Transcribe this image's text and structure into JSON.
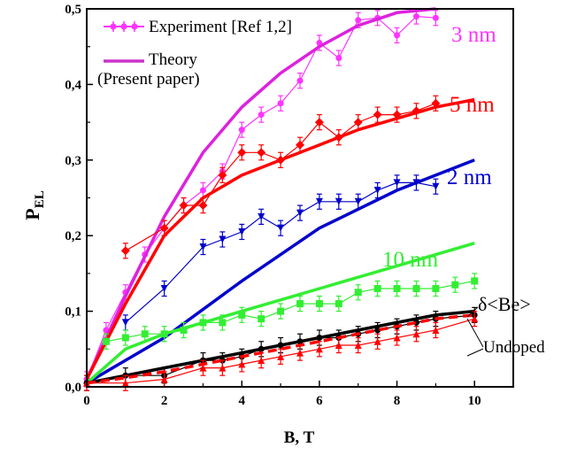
{
  "chart_data": {
    "type": "line",
    "xlabel": "B, T",
    "ylabel_main": "P",
    "ylabel_sub": "EL",
    "xlim": [
      0,
      11
    ],
    "ylim": [
      0,
      0.5
    ],
    "xticks": [
      0,
      2,
      4,
      6,
      8,
      10
    ],
    "yticks": [
      0,
      0.1,
      0.2,
      0.3,
      0.4,
      0.5
    ],
    "xtick_labels": [
      "0",
      "2",
      "4",
      "6",
      "8",
      "10"
    ],
    "ytick_labels": [
      "0,0",
      "0,1",
      "0,2",
      "0,3",
      "0,4",
      "0,5"
    ],
    "legend": {
      "placement": "top-left",
      "experiment_label": "Experiment [Ref 1,2]",
      "theory_label_line1": "Theory",
      "theory_label_line2": "(Present paper)"
    },
    "annotations": {
      "nm3": "3 nm",
      "nm5": "5 nm",
      "nm2": "2 nm",
      "nm10": "10 nm",
      "delta_be": "δ<Be>",
      "undoped": "Undoped"
    },
    "colors": {
      "nm3": "#ff33ff",
      "nm5": "#ff0000",
      "nm2": "#0000cc",
      "nm10": "#33ee33",
      "delta": "#000000",
      "undoped": "#ff0000"
    },
    "series": [
      {
        "key": "nm3",
        "kind": "experiment",
        "marker": "circle",
        "x": [
          0,
          0.5,
          1,
          1.5,
          2,
          2.5,
          3,
          3.5,
          4,
          4.5,
          5,
          5.5,
          6,
          6.5,
          7,
          7.5,
          8,
          8.5,
          9
        ],
        "y": [
          0.01,
          0.075,
          0.125,
          0.175,
          0.21,
          0.24,
          0.26,
          0.285,
          0.34,
          0.36,
          0.375,
          0.405,
          0.455,
          0.435,
          0.485,
          0.488,
          0.465,
          0.49,
          0.488
        ],
        "err": 0.01
      },
      {
        "key": "nm3",
        "kind": "theory",
        "x": [
          0,
          1,
          2,
          3,
          4,
          5,
          6,
          7,
          8,
          9
        ],
        "y": [
          0.01,
          0.12,
          0.225,
          0.31,
          0.37,
          0.415,
          0.45,
          0.478,
          0.495,
          0.5
        ]
      },
      {
        "key": "nm5",
        "kind": "experiment",
        "marker": "diamond",
        "x": [
          1,
          2,
          2.5,
          3,
          3.5,
          4,
          4.5,
          5,
          5.5,
          6,
          6.5,
          7,
          7.5,
          8,
          8.5,
          9
        ],
        "y": [
          0.18,
          0.21,
          0.24,
          0.24,
          0.28,
          0.31,
          0.31,
          0.3,
          0.32,
          0.35,
          0.33,
          0.35,
          0.36,
          0.36,
          0.365,
          0.375
        ],
        "err": 0.01
      },
      {
        "key": "nm5",
        "kind": "theory",
        "x": [
          0,
          1,
          2,
          3,
          4,
          5,
          6,
          7,
          8,
          9,
          10
        ],
        "y": [
          0.01,
          0.11,
          0.2,
          0.25,
          0.28,
          0.3,
          0.32,
          0.34,
          0.355,
          0.37,
          0.38
        ]
      },
      {
        "key": "nm2",
        "kind": "experiment",
        "marker": "triangle-down",
        "x": [
          1,
          2,
          3,
          3.5,
          4,
          4.5,
          5,
          5.5,
          6,
          6.5,
          7,
          7.5,
          8,
          8.5,
          9
        ],
        "y": [
          0.085,
          0.13,
          0.185,
          0.195,
          0.205,
          0.225,
          0.21,
          0.23,
          0.245,
          0.245,
          0.245,
          0.26,
          0.27,
          0.27,
          0.265
        ],
        "err": 0.01
      },
      {
        "key": "nm2",
        "kind": "theory",
        "x": [
          0,
          2,
          4,
          6,
          8,
          10
        ],
        "y": [
          0.005,
          0.065,
          0.14,
          0.21,
          0.26,
          0.3
        ]
      },
      {
        "key": "nm10",
        "kind": "experiment",
        "marker": "square",
        "x": [
          0.5,
          1,
          1.5,
          2,
          2.5,
          3,
          3.5,
          4,
          4.5,
          5,
          5.5,
          6,
          6.5,
          7,
          7.5,
          8,
          8.5,
          9,
          9.5,
          10
        ],
        "y": [
          0.06,
          0.065,
          0.07,
          0.07,
          0.075,
          0.085,
          0.085,
          0.095,
          0.09,
          0.1,
          0.11,
          0.11,
          0.11,
          0.125,
          0.13,
          0.13,
          0.13,
          0.13,
          0.135,
          0.14
        ],
        "err": 0.01
      },
      {
        "key": "nm10",
        "kind": "theory",
        "x": [
          0,
          1,
          2,
          3,
          4,
          5,
          6,
          7,
          8,
          9,
          10
        ],
        "y": [
          0.005,
          0.05,
          0.07,
          0.085,
          0.1,
          0.115,
          0.13,
          0.145,
          0.16,
          0.175,
          0.19
        ]
      },
      {
        "key": "delta",
        "kind": "experiment",
        "marker": "circle",
        "x": [
          0,
          1,
          2,
          3,
          3.5,
          4,
          4.5,
          5,
          5.5,
          6,
          6.5,
          7,
          7.5,
          8,
          8.5,
          9,
          10
        ],
        "y": [
          0.005,
          0.015,
          0.015,
          0.035,
          0.035,
          0.04,
          0.05,
          0.055,
          0.06,
          0.065,
          0.065,
          0.07,
          0.075,
          0.08,
          0.085,
          0.09,
          0.095
        ],
        "err": 0.01
      },
      {
        "key": "delta",
        "kind": "theory",
        "x": [
          0,
          1,
          2,
          3,
          4,
          5,
          6,
          7,
          8,
          9,
          10
        ],
        "y": [
          0.005,
          0.015,
          0.025,
          0.035,
          0.045,
          0.055,
          0.065,
          0.075,
          0.085,
          0.095,
          0.1
        ]
      },
      {
        "key": "undoped",
        "kind": "experiment",
        "marker": "triangle-up",
        "x": [
          0,
          1,
          2,
          3,
          3.5,
          4,
          4.5,
          5,
          5.5,
          6,
          6.5,
          7,
          7.5,
          8,
          8.5,
          9,
          10
        ],
        "y": [
          0.005,
          0.005,
          0.01,
          0.025,
          0.025,
          0.03,
          0.035,
          0.04,
          0.045,
          0.05,
          0.055,
          0.055,
          0.06,
          0.065,
          0.07,
          0.075,
          0.09
        ],
        "err": 0.01
      },
      {
        "key": "undoped",
        "kind": "theory",
        "x": [
          0,
          1,
          2,
          3,
          4,
          5,
          6,
          7,
          8,
          9,
          10
        ],
        "y": [
          0.005,
          0.012,
          0.02,
          0.03,
          0.04,
          0.05,
          0.06,
          0.07,
          0.08,
          0.09,
          0.095
        ]
      }
    ]
  }
}
